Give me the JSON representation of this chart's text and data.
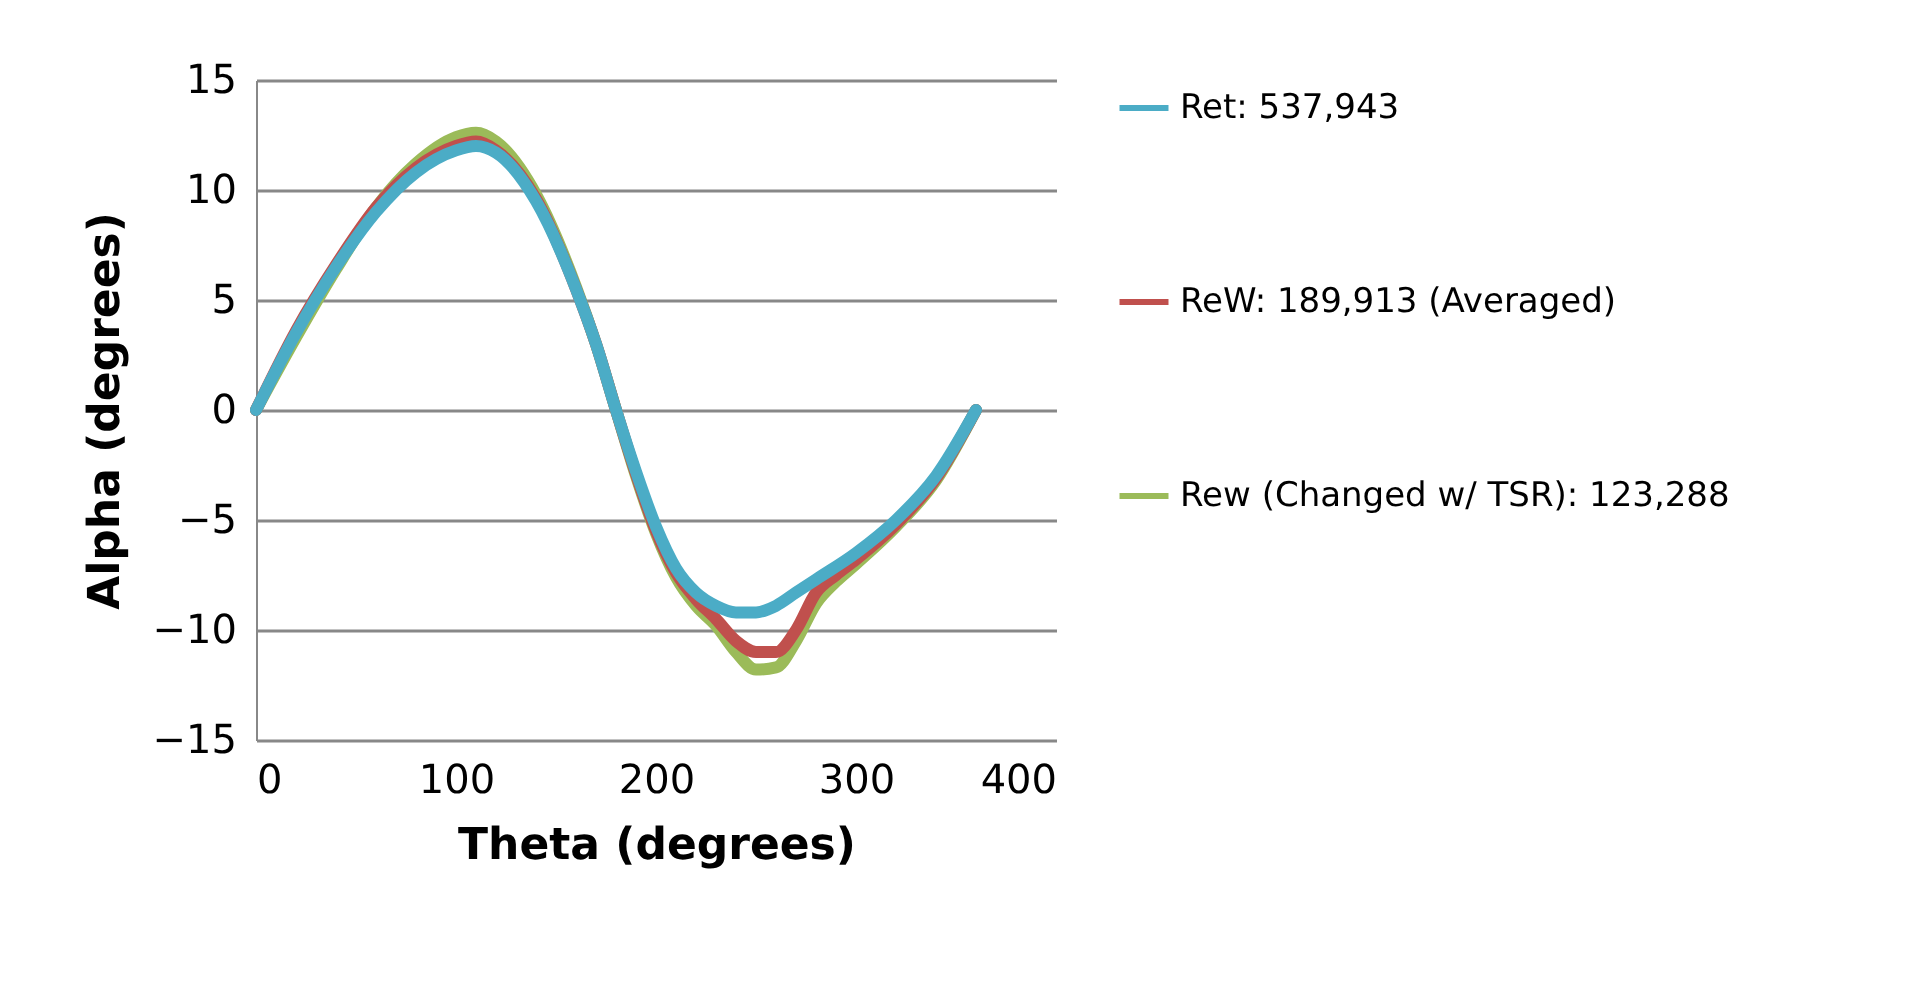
{
  "chart_data": {
    "type": "line",
    "xlabel": "Theta (degrees)",
    "ylabel": "Alpha (degrees)",
    "xlim": [
      0,
      400
    ],
    "xticks": [
      0,
      100,
      200,
      300,
      400
    ],
    "ylim": [
      -15,
      15
    ],
    "yticks": [
      -15,
      -10,
      -5,
      0,
      5,
      10,
      15
    ],
    "grid": "y",
    "legend": "right",
    "line_style": "solid",
    "series": [
      {
        "name": "Ret:  537,943",
        "color": "#4bacc6",
        "x": [
          0,
          20,
          40,
          60,
          80,
          100,
          110,
          120,
          140,
          160,
          170,
          180,
          190,
          200,
          210,
          220,
          230,
          240,
          250,
          260,
          270,
          280,
          300,
          320,
          340,
          360
        ],
        "values": [
          0,
          3.5,
          6.5,
          9,
          10.8,
          11.8,
          12,
          11.7,
          9.5,
          5.5,
          3,
          0,
          -2.8,
          -5.3,
          -7.2,
          -8.3,
          -8.9,
          -9.2,
          -9.2,
          -8.9,
          -8.3,
          -7.7,
          -6.5,
          -5,
          -3,
          0
        ]
      },
      {
        "name": "ReW: 189,913 (Averaged)",
        "color": "#c0504d",
        "x": [
          0,
          20,
          40,
          60,
          80,
          100,
          110,
          120,
          140,
          160,
          170,
          180,
          190,
          200,
          210,
          220,
          230,
          240,
          250,
          260,
          270,
          280,
          290,
          300,
          320,
          340,
          360
        ],
        "values": [
          0,
          3.6,
          6.6,
          9.2,
          11,
          12,
          12.2,
          11.8,
          9.6,
          5.5,
          3,
          0,
          -2.9,
          -5.5,
          -7.4,
          -8.6,
          -9.5,
          -10.5,
          -11,
          -11,
          -10,
          -8.3,
          -7.5,
          -6.8,
          -5.2,
          -3.1,
          0
        ]
      },
      {
        "name": "Rew (Changed w/ TSR): 123,288",
        "color": "#9bbb59",
        "x": [
          0,
          20,
          40,
          60,
          80,
          100,
          110,
          120,
          140,
          160,
          170,
          180,
          190,
          200,
          210,
          220,
          230,
          240,
          250,
          260,
          270,
          280,
          290,
          300,
          320,
          340,
          360
        ],
        "values": [
          0,
          3.3,
          6.4,
          9.2,
          11.2,
          12.4,
          12.6,
          12.2,
          9.8,
          5.6,
          3,
          0,
          -3,
          -5.6,
          -7.6,
          -8.9,
          -9.8,
          -11,
          -11.8,
          -11.7,
          -10.5,
          -8.8,
          -7.8,
          -7,
          -5.3,
          -3.2,
          0
        ]
      }
    ]
  }
}
